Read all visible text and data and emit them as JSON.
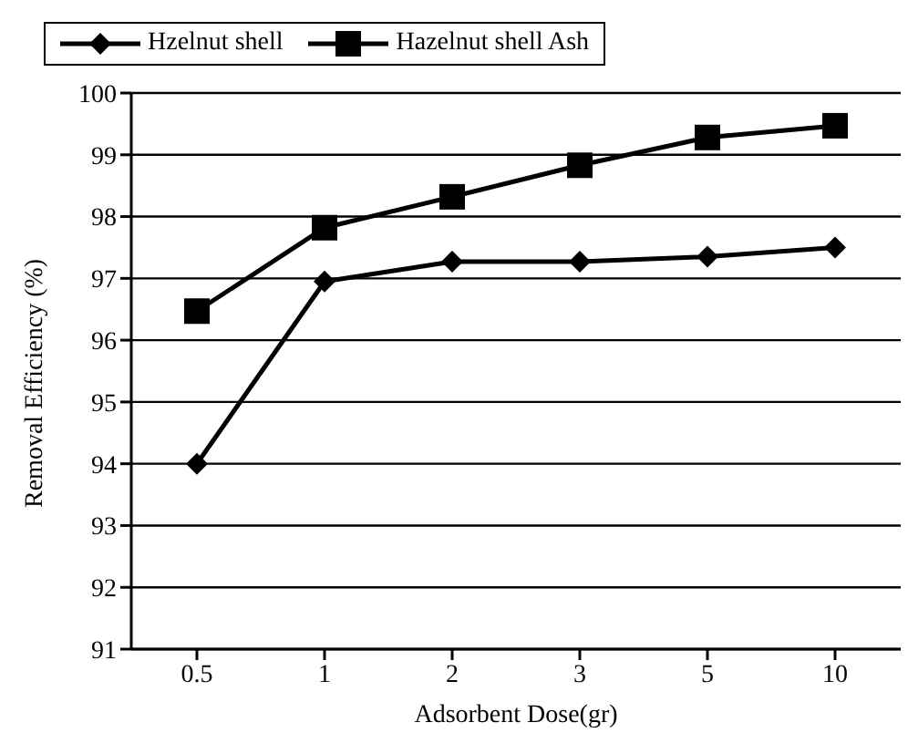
{
  "chart_data": {
    "type": "line",
    "xlabel": "Adsorbent Dose(gr)",
    "ylabel": "Removal Efficiency (%)",
    "categories": [
      "0.5",
      "1",
      "2",
      "3",
      "5",
      "10"
    ],
    "series": [
      {
        "name": "Hzelnut shell",
        "color": "#000000",
        "marker": "diamond",
        "values": [
          94.0,
          96.95,
          97.27,
          97.27,
          97.35,
          97.5
        ]
      },
      {
        "name": "Hazelnut shell Ash",
        "color": "#000000",
        "marker": "square",
        "values": [
          96.47,
          97.82,
          98.32,
          98.83,
          99.28,
          99.47
        ]
      }
    ],
    "ylim": [
      91,
      100
    ],
    "yticks": [
      91,
      92,
      93,
      94,
      95,
      96,
      97,
      98,
      99,
      100
    ],
    "grid": "y",
    "legend": "top",
    "line_style": "solid"
  }
}
